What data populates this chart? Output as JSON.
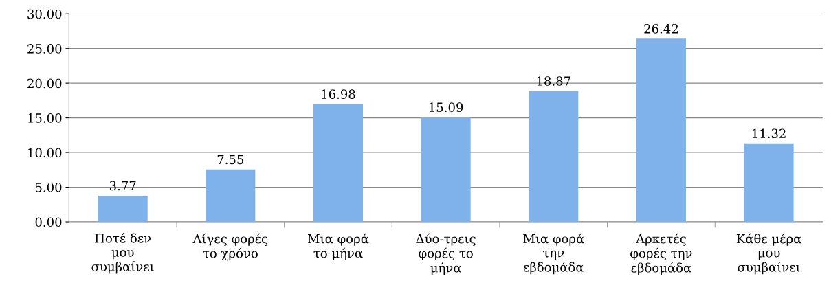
{
  "chart_data": {
    "type": "bar",
    "categories": [
      "Ποτέ δεν\nμου\nσυμβαίνει",
      "Λίγες φορές\nτο χρόνο",
      "Μια φορά\nτο μήνα",
      "Δύο-τρεις\nφορές το\nμήνα",
      "Μια φορά\nτην\nεβδομάδα",
      "Αρκετές\nφορές την\nεβδομάδα",
      "Κάθε μέρα\nμου\nσυμβαίνει"
    ],
    "values": [
      3.77,
      7.55,
      16.98,
      15.09,
      18.87,
      26.42,
      11.32
    ],
    "color": "#7fb1ea",
    "ylim": [
      0,
      30
    ],
    "yticks": [
      {
        "value": 0,
        "label": "0.00"
      },
      {
        "value": 5,
        "label": "5.00"
      },
      {
        "value": 10,
        "label": "10.00"
      },
      {
        "value": 15,
        "label": "15.00"
      },
      {
        "value": 20,
        "label": "20.00"
      },
      {
        "value": 25,
        "label": "25.00"
      },
      {
        "value": 30,
        "label": "30.00"
      }
    ],
    "grid": "y",
    "data_labels": true
  }
}
